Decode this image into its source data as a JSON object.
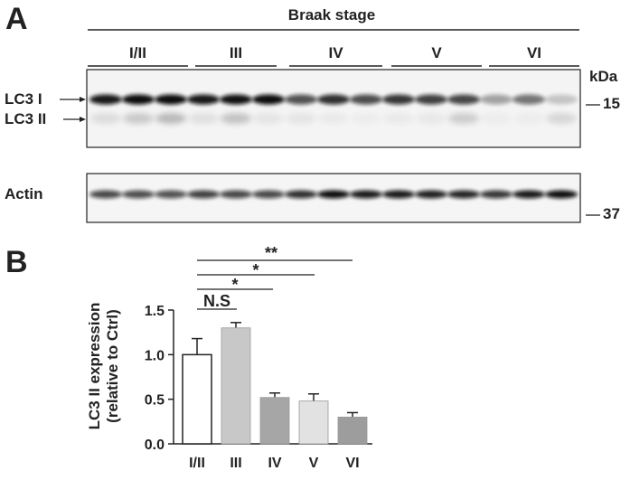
{
  "panel_a": {
    "letter": "A",
    "group_title": "Braak stage",
    "stages": [
      "I/II",
      "III",
      "IV",
      "V",
      "VI"
    ],
    "blot_labels": {
      "lc3_1": "LC3 I",
      "lc3_2": "LC3 II",
      "actin": "Actin"
    },
    "marker_unit": "kDa",
    "markers": {
      "upper": "15",
      "lower": "37"
    }
  },
  "panel_b": {
    "letter": "B",
    "significance": {
      "iii": "N.S",
      "iv": "*",
      "v": "*",
      "vi": "**"
    }
  },
  "chart_data": {
    "type": "bar",
    "categories": [
      "I/II",
      "III",
      "IV",
      "V",
      "VI"
    ],
    "values": [
      1.0,
      1.3,
      0.52,
      0.48,
      0.3
    ],
    "errors": [
      0.18,
      0.06,
      0.05,
      0.08,
      0.05
    ],
    "ylabel_line1": "LC3 II expression",
    "ylabel_line2": "(relative to Ctrl)",
    "ylim": [
      0,
      1.5
    ],
    "yticks": [
      "0.0",
      "0.5",
      "1.0",
      "1.5"
    ],
    "ytick_values": [
      0,
      0.5,
      1.0,
      1.5
    ],
    "bar_colors": [
      "#ffffff",
      "#c8c8c8",
      "#a6a6a6",
      "#e2e2e2",
      "#9d9d9d"
    ],
    "comparisons": [
      {
        "from": "I/II",
        "to": "III",
        "label": "N.S"
      },
      {
        "from": "I/II",
        "to": "IV",
        "label": "*"
      },
      {
        "from": "I/II",
        "to": "V",
        "label": "*"
      },
      {
        "from": "I/II",
        "to": "VI",
        "label": "**"
      }
    ]
  }
}
